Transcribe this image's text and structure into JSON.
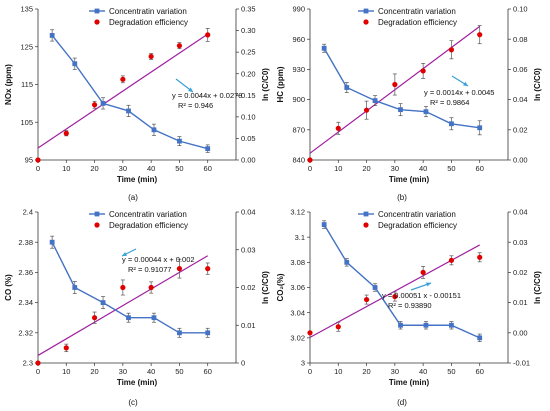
{
  "colors": {
    "concentration": "#4472C4",
    "efficiency": "#E00000",
    "fit": "#A020A0",
    "annot": "#3AA0D8"
  },
  "legend": {
    "concentration": "Concentratin variation",
    "efficiency": "Degradation efficiency"
  },
  "chart_data": [
    {
      "type": "line",
      "panel_label": "(a)",
      "xlabel": "Time (min)",
      "ylabel": "NOx (ppm)",
      "ylabel_right": "ln (C/C0)",
      "xlim": [
        0,
        70
      ],
      "xticks": [
        0,
        10,
        20,
        30,
        40,
        50,
        60
      ],
      "ylim": [
        95,
        135
      ],
      "yticks": [
        "95",
        "105",
        "115",
        "125",
        "135"
      ],
      "ylim_right": [
        0,
        0.35
      ],
      "yticks_right": [
        "0.00",
        "0.05",
        "0.10",
        "0.15",
        "0.20",
        "0.25",
        "0.30",
        "0.35"
      ],
      "series": [
        {
          "name": "Concentratin variation",
          "axis": "left",
          "style": "line-square",
          "x": [
            5,
            13,
            23,
            32,
            41,
            50,
            60
          ],
          "values": [
            128,
            120.5,
            110,
            108,
            103,
            100,
            98
          ],
          "errors": [
            1.5,
            1.5,
            1.5,
            1.5,
            1.5,
            1.2,
            1
          ]
        },
        {
          "name": "Degradation efficiency",
          "axis": "right",
          "style": "markers",
          "x": [
            0,
            10,
            20,
            30,
            40,
            50,
            60
          ],
          "values": [
            0,
            0.062,
            0.128,
            0.187,
            0.24,
            0.265,
            0.29
          ],
          "errors": [
            0,
            0.006,
            0.008,
            0.008,
            0.007,
            0.007,
            0.015
          ]
        }
      ],
      "fit": {
        "axis": "right",
        "slope": 0.0044,
        "intercept": 0.0278
      },
      "equation": "y = 0.0044x + 0.0278",
      "r2": "R² = 0.946"
    },
    {
      "type": "line",
      "panel_label": "(b)",
      "xlabel": "Time (min)",
      "ylabel": "HC (ppm)",
      "ylabel_right": "ln (C/C0)",
      "xlim": [
        0,
        70
      ],
      "xticks": [
        0,
        10,
        20,
        30,
        40,
        50,
        60
      ],
      "ylim": [
        840,
        990
      ],
      "yticks": [
        "840",
        "870",
        "900",
        "930",
        "960",
        "990"
      ],
      "ylim_right": [
        0,
        0.1
      ],
      "yticks_right": [
        "0.00",
        "0.02",
        "0.04",
        "0.06",
        "0.08",
        "0.10"
      ],
      "series": [
        {
          "name": "Concentratin variation",
          "axis": "left",
          "style": "line-square",
          "x": [
            5,
            13,
            23,
            32,
            41,
            50,
            60
          ],
          "values": [
            951,
            912,
            899,
            890,
            888,
            876,
            872
          ],
          "errors": [
            4,
            5,
            5,
            6,
            5,
            6,
            7
          ]
        },
        {
          "name": "Degradation efficiency",
          "axis": "right",
          "style": "markers",
          "x": [
            0,
            10,
            20,
            30,
            40,
            50,
            60
          ],
          "values": [
            0,
            0.021,
            0.033,
            0.05,
            0.059,
            0.073,
            0.083
          ],
          "errors": [
            0,
            0.004,
            0.006,
            0.007,
            0.005,
            0.006,
            0.006
          ]
        }
      ],
      "fit": {
        "axis": "right",
        "slope": 0.0014,
        "intercept": 0.0045
      },
      "equation": "y = 0.0014x + 0.0045",
      "r2": "R² = 0.9864"
    },
    {
      "type": "line",
      "panel_label": "(c)",
      "xlabel": "Time (min)",
      "ylabel": "CO (%)",
      "ylabel_right": "ln (C/C0)",
      "xlim": [
        0,
        70
      ],
      "xticks": [
        0,
        10,
        20,
        30,
        40,
        50,
        60
      ],
      "ylim": [
        2.3,
        2.4
      ],
      "yticks": [
        "2.3",
        "2.32",
        "2.34",
        "2.36",
        "2.38",
        "2.4"
      ],
      "ylim_right": [
        0,
        0.04
      ],
      "yticks_right": [
        "0",
        "0.01",
        "0.02",
        "0.03",
        "0.04"
      ],
      "series": [
        {
          "name": "Concentratin variation",
          "axis": "left",
          "style": "line-square",
          "x": [
            5,
            13,
            23,
            32,
            41,
            50,
            60
          ],
          "values": [
            2.38,
            2.35,
            2.34,
            2.33,
            2.33,
            2.32,
            2.32
          ],
          "errors": [
            0.004,
            0.004,
            0.004,
            0.003,
            0.003,
            0.003,
            0.003
          ]
        },
        {
          "name": "Degradation efficiency",
          "axis": "right",
          "style": "markers",
          "x": [
            0,
            10,
            20,
            30,
            40,
            50,
            60
          ],
          "values": [
            0,
            0.004,
            0.012,
            0.02,
            0.02,
            0.025,
            0.025
          ],
          "errors": [
            0,
            0.001,
            0.0015,
            0.002,
            0.0015,
            0.0025,
            0.0015
          ]
        }
      ],
      "fit": {
        "axis": "right",
        "slope": 0.00044,
        "intercept": 0.002
      },
      "equation": "y = 0.00044 x + 0.002",
      "r2": "R² = 0.91077"
    },
    {
      "type": "line",
      "panel_label": "(d)",
      "xlabel": "Time (min)",
      "ylabel": "CO₂(%)",
      "ylabel_right": "ln (C/C0)",
      "xlim": [
        0,
        70
      ],
      "xticks": [
        0,
        10,
        20,
        30,
        40,
        50,
        60
      ],
      "ylim": [
        3.0,
        3.12
      ],
      "yticks": [
        "3",
        "3.02",
        "3.04",
        "3.06",
        "3.08",
        "3.1",
        "3.12"
      ],
      "ylim_right": [
        -0.01,
        0.04
      ],
      "yticks_right": [
        "-0.01",
        "0.00",
        "0.01",
        "0.02",
        "0.03",
        "0.04"
      ],
      "series": [
        {
          "name": "Concentratin variation",
          "axis": "left",
          "style": "line-square",
          "x": [
            5,
            13,
            23,
            32,
            41,
            50,
            60
          ],
          "values": [
            3.11,
            3.08,
            3.06,
            3.03,
            3.03,
            3.03,
            3.02
          ],
          "errors": [
            0.003,
            0.003,
            0.003,
            0.003,
            0.003,
            0.003,
            0.003
          ]
        },
        {
          "name": "Degradation efficiency",
          "axis": "right",
          "style": "markers",
          "x": [
            0,
            10,
            20,
            30,
            40,
            50,
            60
          ],
          "values": [
            0,
            0.002,
            0.011,
            0.012,
            0.02,
            0.024,
            0.025
          ],
          "errors": [
            0,
            0.0015,
            0.0015,
            0.0015,
            0.002,
            0.0015,
            0.0015
          ]
        }
      ],
      "fit": {
        "axis": "right",
        "slope": 0.00051,
        "intercept": -0.00151
      },
      "equation": "y = 0.00051 x - 0.00151",
      "r2": "R² = 0.93890"
    }
  ]
}
